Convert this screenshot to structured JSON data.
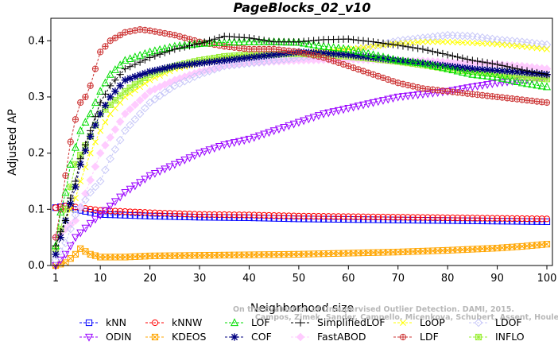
{
  "chart_data": {
    "type": "line",
    "title": "PageBlocks_02_v10",
    "xlabel": "Neighborhood size",
    "ylabel": "Adjusted AP",
    "xlim": [
      1,
      100
    ],
    "ylim": [
      0,
      0.44
    ],
    "xticks": [
      "1",
      "10",
      "20",
      "30",
      "40",
      "50",
      "60",
      "70",
      "80",
      "90",
      "100"
    ],
    "yticks": [
      "0.0",
      "0.1",
      "0.2",
      "0.3",
      "0.4"
    ],
    "grid": false,
    "legend_position": "bottom",
    "watermark": [
      "Campos, Zimek, Sander, Campello, Micenkova, Schubert, Assent, Houle",
      "On the Evaluation of Unsupervised Outlier Detection. DAMI, 2015."
    ],
    "series": [
      {
        "name": "kNN",
        "color": "#0000ff",
        "marker": "square",
        "x": [
          1,
          3,
          5,
          10,
          20,
          30,
          40,
          50,
          60,
          70,
          80,
          90,
          100
        ],
        "values": [
          0.103,
          0.106,
          0.1,
          0.091,
          0.088,
          0.086,
          0.085,
          0.083,
          0.082,
          0.081,
          0.08,
          0.079,
          0.078
        ]
      },
      {
        "name": "kNNW",
        "color": "#ff0000",
        "marker": "circle",
        "x": [
          1,
          3,
          5,
          10,
          20,
          30,
          40,
          50,
          60,
          70,
          80,
          90,
          100
        ],
        "values": [
          0.103,
          0.106,
          0.104,
          0.098,
          0.094,
          0.091,
          0.09,
          0.088,
          0.087,
          0.086,
          0.085,
          0.084,
          0.083
        ]
      },
      {
        "name": "LOF",
        "color": "#00dd00",
        "marker": "triangle-up",
        "x": [
          1,
          2,
          3,
          4,
          5,
          6,
          8,
          10,
          12,
          15,
          20,
          25,
          30,
          35,
          40,
          45,
          50,
          55,
          60,
          65,
          70,
          75,
          80,
          85,
          90,
          95,
          100
        ],
        "values": [
          0.035,
          0.095,
          0.13,
          0.18,
          0.21,
          0.24,
          0.27,
          0.31,
          0.34,
          0.365,
          0.38,
          0.39,
          0.395,
          0.397,
          0.398,
          0.398,
          0.397,
          0.39,
          0.385,
          0.375,
          0.365,
          0.36,
          0.35,
          0.34,
          0.335,
          0.325,
          0.318
        ]
      },
      {
        "name": "SimplifiedLOF",
        "color": "#000000",
        "marker": "plus",
        "x": [
          1,
          2,
          3,
          4,
          5,
          6,
          8,
          10,
          12,
          15,
          20,
          25,
          30,
          35,
          40,
          45,
          50,
          55,
          60,
          65,
          70,
          75,
          80,
          85,
          90,
          95,
          100
        ],
        "values": [
          0.035,
          0.06,
          0.08,
          0.12,
          0.15,
          0.19,
          0.24,
          0.29,
          0.32,
          0.35,
          0.37,
          0.385,
          0.395,
          0.408,
          0.405,
          0.398,
          0.398,
          0.402,
          0.403,
          0.398,
          0.392,
          0.385,
          0.375,
          0.365,
          0.358,
          0.348,
          0.34
        ]
      },
      {
        "name": "LoOP",
        "color": "#ffff00",
        "marker": "x",
        "x": [
          1,
          2,
          3,
          4,
          5,
          6,
          8,
          10,
          12,
          15,
          20,
          25,
          30,
          35,
          40,
          45,
          50,
          55,
          60,
          65,
          70,
          75,
          80,
          85,
          90,
          95,
          100
        ],
        "values": [
          0.02,
          0.05,
          0.08,
          0.1,
          0.12,
          0.15,
          0.2,
          0.24,
          0.27,
          0.3,
          0.33,
          0.35,
          0.36,
          0.37,
          0.373,
          0.375,
          0.378,
          0.382,
          0.385,
          0.39,
          0.395,
          0.398,
          0.398,
          0.396,
          0.394,
          0.39,
          0.385
        ]
      },
      {
        "name": "LDOF",
        "color": "#c8c8f8",
        "marker": "diamond",
        "x": [
          1,
          3,
          5,
          8,
          10,
          12,
          15,
          20,
          25,
          30,
          35,
          40,
          45,
          50,
          55,
          60,
          65,
          70,
          75,
          80,
          85,
          90,
          95,
          100
        ],
        "values": [
          0.01,
          0.04,
          0.09,
          0.13,
          0.15,
          0.19,
          0.24,
          0.29,
          0.32,
          0.34,
          0.355,
          0.36,
          0.365,
          0.37,
          0.375,
          0.38,
          0.39,
          0.4,
          0.405,
          0.41,
          0.408,
          0.402,
          0.398,
          0.393
        ]
      },
      {
        "name": "ODIN",
        "color": "#9900ff",
        "marker": "triangle-down",
        "x": [
          1,
          3,
          5,
          8,
          10,
          15,
          20,
          25,
          30,
          35,
          40,
          45,
          50,
          55,
          60,
          65,
          70,
          75,
          80,
          85,
          90,
          95,
          100
        ],
        "values": [
          0.0,
          0.02,
          0.05,
          0.075,
          0.09,
          0.13,
          0.16,
          0.18,
          0.2,
          0.215,
          0.225,
          0.24,
          0.255,
          0.27,
          0.28,
          0.29,
          0.3,
          0.305,
          0.31,
          0.318,
          0.325,
          0.33,
          0.335
        ]
      },
      {
        "name": "COF",
        "color": "#000080",
        "marker": "asterisk",
        "x": [
          1,
          2,
          3,
          4,
          5,
          6,
          8,
          10,
          12,
          15,
          20,
          25,
          30,
          35,
          40,
          45,
          50,
          55,
          60,
          65,
          70,
          75,
          80,
          85,
          90,
          95,
          100
        ],
        "values": [
          0.02,
          0.05,
          0.08,
          0.11,
          0.14,
          0.18,
          0.23,
          0.27,
          0.3,
          0.33,
          0.345,
          0.355,
          0.36,
          0.365,
          0.37,
          0.375,
          0.38,
          0.378,
          0.375,
          0.37,
          0.365,
          0.36,
          0.355,
          0.35,
          0.347,
          0.344,
          0.34
        ]
      },
      {
        "name": "KDEOS",
        "color": "#ffa500",
        "marker": "square-x",
        "x": [
          1,
          3,
          5,
          6,
          8,
          10,
          15,
          20,
          30,
          40,
          50,
          60,
          70,
          80,
          90,
          95,
          100
        ],
        "values": [
          0.0,
          0.005,
          0.02,
          0.03,
          0.02,
          0.015,
          0.015,
          0.017,
          0.018,
          0.019,
          0.02,
          0.022,
          0.024,
          0.027,
          0.031,
          0.034,
          0.038
        ]
      },
      {
        "name": "LDF",
        "color": "#cc3333",
        "marker": "circle-plus",
        "x": [
          1,
          2,
          3,
          4,
          5,
          6,
          7,
          8,
          10,
          12,
          15,
          18,
          20,
          25,
          30,
          35,
          40,
          45,
          50,
          55,
          60,
          65,
          70,
          75,
          80,
          85,
          90,
          95,
          100
        ],
        "values": [
          0.05,
          0.1,
          0.16,
          0.22,
          0.26,
          0.29,
          0.3,
          0.32,
          0.38,
          0.4,
          0.415,
          0.42,
          0.418,
          0.41,
          0.398,
          0.39,
          0.385,
          0.385,
          0.38,
          0.37,
          0.355,
          0.34,
          0.325,
          0.315,
          0.31,
          0.305,
          0.3,
          0.295,
          0.29
        ]
      },
      {
        "name": "FastABOD",
        "color": "#ffccff",
        "marker": "diamond-filled",
        "x": [
          1,
          5,
          10,
          15,
          20,
          25,
          30,
          35,
          40,
          45,
          50,
          55,
          60,
          65,
          70,
          75,
          80,
          85,
          90,
          95,
          100
        ],
        "values": [
          0.05,
          0.08,
          0.2,
          0.27,
          0.31,
          0.33,
          0.345,
          0.355,
          0.36,
          0.363,
          0.365,
          0.366,
          0.367,
          0.366,
          0.365,
          0.364,
          0.362,
          0.36,
          0.358,
          0.355,
          0.35
        ]
      },
      {
        "name": "INFLO",
        "color": "#99ee33",
        "marker": "square-star",
        "x": [
          1,
          3,
          5,
          8,
          10,
          15,
          20,
          25,
          30,
          35,
          40,
          45,
          50,
          55,
          60,
          65,
          70,
          75,
          80,
          85,
          90,
          95,
          100
        ],
        "values": [
          0.03,
          0.1,
          0.18,
          0.23,
          0.27,
          0.31,
          0.34,
          0.355,
          0.365,
          0.372,
          0.375,
          0.376,
          0.377,
          0.375,
          0.372,
          0.368,
          0.363,
          0.357,
          0.35,
          0.345,
          0.34,
          0.336,
          0.332
        ]
      }
    ]
  }
}
